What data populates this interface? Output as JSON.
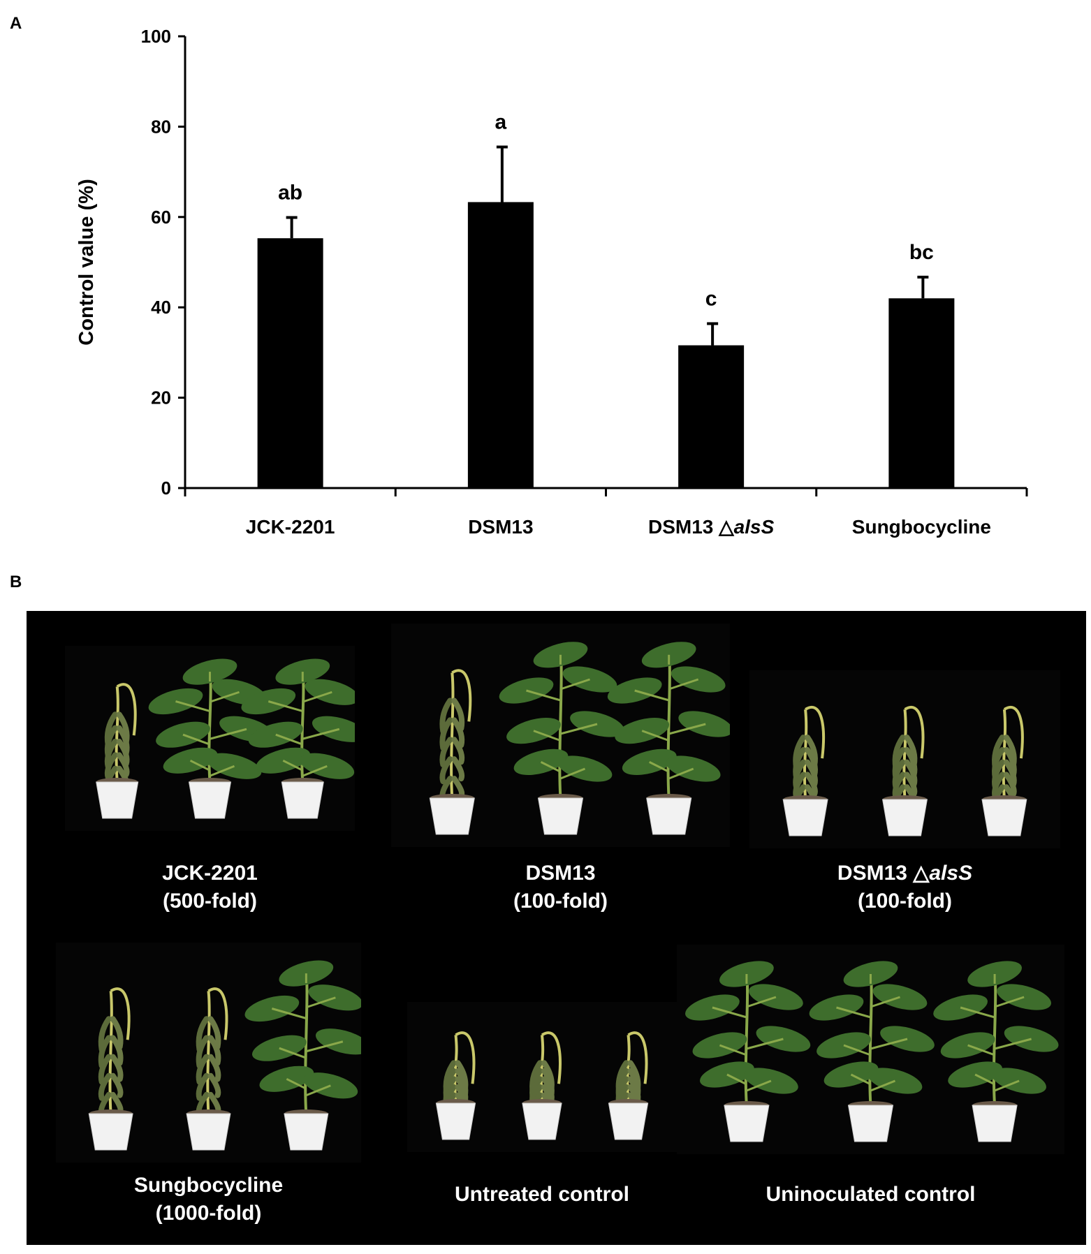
{
  "panel_a": {
    "letter": "A"
  },
  "panel_b": {
    "letter": "B",
    "photos": [
      {
        "line1": "JCK-2201",
        "line2": "(500-fold)",
        "plants": [
          "wilted",
          "healthy",
          "healthy"
        ]
      },
      {
        "line1": "DSM13",
        "line2": "(100-fold)",
        "plants": [
          "wilted",
          "healthy",
          "healthy"
        ]
      },
      {
        "line1_main": "DSM13 △",
        "line1_italic": "alsS",
        "line2": "(100-fold)",
        "plants": [
          "wilted",
          "wilted",
          "wilted"
        ]
      },
      {
        "line1": "Sungbocycline",
        "line2": "(1000-fold)",
        "plants": [
          "wilted",
          "wilted",
          "healthy"
        ]
      },
      {
        "line1": "Untreated control",
        "line2": "",
        "plants": [
          "wilted",
          "wilted",
          "wilted"
        ]
      },
      {
        "line1": "Uninoculated control",
        "line2": "",
        "plants": [
          "healthy",
          "healthy",
          "healthy"
        ]
      }
    ]
  },
  "chart_data": {
    "type": "bar",
    "categories": [
      "JCK-2201",
      "DSM13",
      "DSM13 △alsS",
      "Sungbocycline"
    ],
    "category_labels": [
      {
        "main": "JCK-2201",
        "italic": ""
      },
      {
        "main": "DSM13",
        "italic": ""
      },
      {
        "main": "DSM13 △",
        "italic": "alsS"
      },
      {
        "main": "Sungbocycline",
        "italic": ""
      }
    ],
    "values": [
      55.3,
      63.3,
      31.6,
      42.0
    ],
    "errors": [
      4.6,
      12.2,
      4.8,
      4.7
    ],
    "significance": [
      "ab",
      "a",
      "c",
      "bc"
    ],
    "title": "",
    "xlabel": "",
    "ylabel": "Control value (%)",
    "ylim": [
      0,
      100
    ],
    "yticks": [
      0,
      20,
      40,
      60,
      80,
      100
    ],
    "bar_color": "#000000",
    "grid": false,
    "legend": "none"
  }
}
